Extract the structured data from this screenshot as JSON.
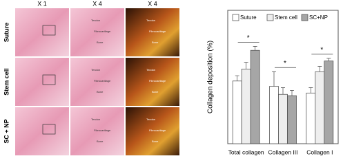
{
  "figure": {
    "columns": [
      "X 1",
      "X 4",
      "X 4"
    ],
    "rows": [
      "Suture",
      "Stem cell",
      "SC + NP"
    ],
    "tissue_labels": [
      "Tendon",
      "Fibrocartilage",
      "Bone"
    ]
  },
  "chart_data": {
    "type": "bar",
    "ylabel": "Collagen deposition (%)",
    "categories": [
      "Total collagen",
      "Collagen III",
      "Collagen I"
    ],
    "series": [
      {
        "name": "Suture",
        "color": "#ffffff",
        "values": [
          47,
          43,
          38
        ],
        "errors": [
          4,
          11,
          4
        ]
      },
      {
        "name": "Stem cell",
        "color": "#eeeeee",
        "values": [
          56,
          37,
          54
        ],
        "errors": [
          5,
          5,
          4
        ]
      },
      {
        "name": "SC+NP",
        "color": "#a6a6a6",
        "values": [
          70,
          36,
          62
        ],
        "errors": [
          3,
          4,
          2
        ]
      }
    ],
    "ylim": [
      0,
      100
    ],
    "annotations": [
      "*",
      "*",
      "*"
    ],
    "legend": "top"
  }
}
